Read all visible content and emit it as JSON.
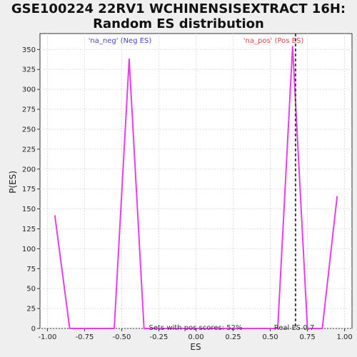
{
  "chart_data": {
    "type": "line",
    "title_line1": "GSE100224 22RV1 WCHINENSISEXTRACT 16H:",
    "title_line2": "Random ES distribution",
    "xlabel": "ES",
    "ylabel": "P(ES)",
    "xlim": [
      -1.05,
      1.05
    ],
    "ylim": [
      0,
      370
    ],
    "x_ticks": [
      -1.0,
      -0.75,
      -0.5,
      -0.25,
      0.0,
      0.25,
      0.5,
      0.75,
      1.0
    ],
    "x_tick_labels": [
      "-1.00",
      "-0.75",
      "-0.50",
      "-0.25",
      "0.00",
      "0.25",
      "0.50",
      "0.75",
      "1.00"
    ],
    "y_ticks": [
      0,
      25,
      50,
      75,
      100,
      125,
      150,
      175,
      200,
      225,
      250,
      275,
      300,
      325,
      350
    ],
    "y_tick_labels": [
      "0",
      "25",
      "50",
      "75",
      "100",
      "125",
      "150",
      "175",
      "200",
      "225",
      "250",
      "275",
      "300",
      "325",
      "350"
    ],
    "grid": true,
    "series": [
      {
        "color": "#e83ee8",
        "x": [
          -0.95,
          -0.85,
          -0.75,
          -0.65,
          -0.55,
          -0.45,
          -0.35,
          -0.25,
          -0.15,
          -0.05,
          0.05,
          0.15,
          0.25,
          0.35,
          0.45,
          0.55,
          0.65,
          0.75,
          0.85,
          0.95
        ],
        "y": [
          142,
          0,
          0,
          0,
          0,
          338,
          0,
          0,
          0,
          0,
          0,
          0,
          0,
          0,
          0,
          0,
          354,
          0,
          0,
          166
        ]
      }
    ],
    "real_es": {
      "value": 0.67,
      "label": "Real ES 0.7",
      "color": "#444444"
    },
    "annotations": {
      "neg_label": "'na_neg' (Neg ES)",
      "neg_color": "#4444cc",
      "pos_label": "'na_pos' (Pos ES)",
      "pos_color": "#dd4444",
      "pos_scores": "Sets with pos scores: 52%"
    }
  }
}
